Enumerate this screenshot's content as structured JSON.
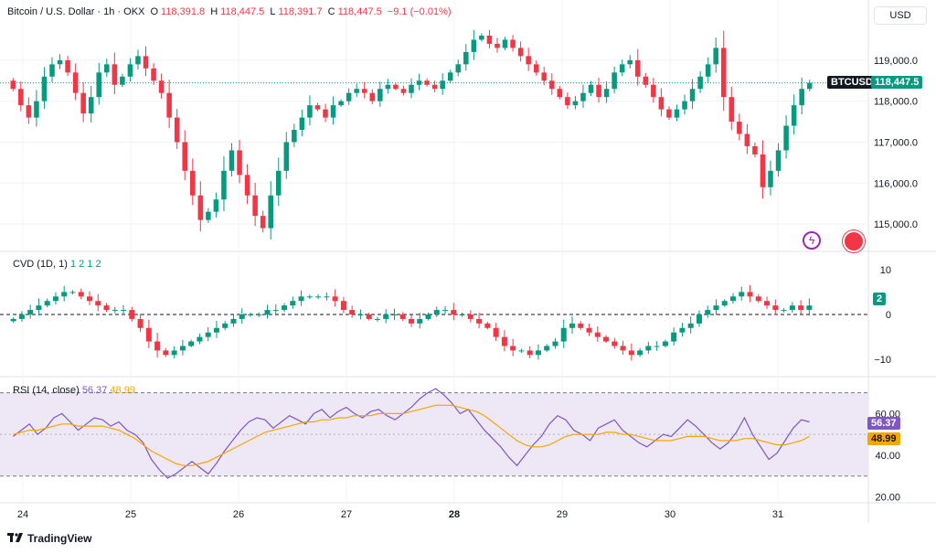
{
  "header": {
    "symbol": "Bitcoin / U.S. Dollar · 1h · OKX",
    "o_label": "O",
    "o_value": "118,391.8",
    "h_label": "H",
    "h_value": "118,447.5",
    "l_label": "L",
    "l_value": "118,391.7",
    "c_label": "C",
    "c_value": "118,447.5",
    "change": "−9.1 (−0.01%)"
  },
  "currency": "USD",
  "price_tag": {
    "ticker": "BTCUSD",
    "value": "118,447.5"
  },
  "cvd": {
    "label": "CVD (1D, 1)",
    "values": [
      "1",
      "2",
      "1",
      "2"
    ],
    "tag": "2"
  },
  "rsi": {
    "label": "RSI (14, close)",
    "value1": "56.37",
    "value2": "48.99"
  },
  "branding": "TradingView",
  "colors": {
    "up": "#089981",
    "down": "#f23645",
    "rsi": "#7e57c2",
    "ma": "#f7a600",
    "bg_band": "#ede7f6"
  },
  "chart_data": [
    {
      "type": "candlestick",
      "title": "Bitcoin / U.S. Dollar · 1h · OKX",
      "x_ticks": [
        "24",
        "25",
        "26",
        "27",
        "28",
        "29",
        "30",
        "31"
      ],
      "y_ticks": [
        "119,000.0",
        "118,000.0",
        "117,000.0",
        "116,000.0",
        "115,000.0"
      ],
      "ylim": [
        114400,
        119800
      ],
      "last_price": 118447.5,
      "closes": [
        118300,
        117900,
        117600,
        118000,
        118600,
        118900,
        119000,
        118700,
        118200,
        117700,
        118100,
        118700,
        118900,
        118400,
        118600,
        118900,
        119100,
        118800,
        118500,
        118200,
        117600,
        117000,
        116300,
        115700,
        115100,
        115300,
        115600,
        116300,
        116800,
        116200,
        115700,
        115200,
        114900,
        115700,
        116300,
        117000,
        117300,
        117600,
        117900,
        117800,
        117600,
        117900,
        118000,
        118200,
        118300,
        118200,
        118000,
        118300,
        118400,
        118300,
        118200,
        118400,
        118500,
        118400,
        118300,
        118500,
        118700,
        118900,
        119200,
        119500,
        119600,
        119400,
        119300,
        119500,
        119300,
        119100,
        118900,
        118700,
        118500,
        118300,
        118100,
        117900,
        118000,
        118200,
        118400,
        118100,
        118300,
        118700,
        118900,
        119000,
        118600,
        118400,
        118100,
        117800,
        117600,
        117800,
        118000,
        118300,
        118600,
        118900,
        119300,
        118100,
        117500,
        117200,
        116900,
        116700,
        115900,
        116300,
        116800,
        117400,
        117900,
        118300,
        118447.5
      ],
      "grid": true
    },
    {
      "type": "candlestick",
      "title": "CVD (1D, 1)",
      "y_ticks": [
        "10",
        "0",
        "−10"
      ],
      "ylim": [
        -13,
        13
      ],
      "closes": [
        -1,
        0,
        1,
        2,
        3,
        4,
        5,
        5,
        4,
        3,
        2,
        1,
        1,
        1,
        -1,
        -3,
        -6,
        -8,
        -9,
        -8,
        -7,
        -6,
        -5,
        -4,
        -3,
        -2,
        -1,
        0,
        0,
        0,
        1,
        1,
        2,
        3,
        4,
        4,
        4,
        4,
        3,
        1,
        0,
        0,
        -1,
        -1,
        0,
        0,
        -1,
        -2,
        -1,
        0,
        1,
        1,
        0,
        0,
        -1,
        -2,
        -3,
        -5,
        -7,
        -8,
        -8,
        -9,
        -8,
        -7,
        -6,
        -3,
        -2,
        -3,
        -4,
        -5,
        -6,
        -7,
        -8,
        -9,
        -8,
        -7,
        -7,
        -6,
        -4,
        -3,
        -2,
        0,
        1,
        2,
        3,
        4,
        5,
        4,
        3,
        2,
        1,
        1,
        2,
        1,
        2
      ]
    },
    {
      "type": "line",
      "title": "RSI (14, close)",
      "y_ticks": [
        "60.00",
        "40.00",
        "20.00"
      ],
      "ylim": [
        18,
        76
      ],
      "bands": [
        70,
        30
      ],
      "series": [
        {
          "name": "RSI (14, close)",
          "values": [
            49,
            52,
            55,
            50,
            53,
            58,
            60,
            56,
            52,
            55,
            58,
            57,
            54,
            56,
            52,
            50,
            46,
            38,
            33,
            29,
            31,
            34,
            37,
            34,
            31,
            36,
            42,
            47,
            52,
            56,
            58,
            57,
            53,
            56,
            59,
            57,
            55,
            60,
            62,
            58,
            61,
            63,
            60,
            58,
            61,
            62,
            59,
            57,
            60,
            63,
            67,
            70,
            72,
            69,
            65,
            60,
            62,
            57,
            52,
            48,
            44,
            39,
            35,
            40,
            45,
            49,
            55,
            59,
            57,
            52,
            50,
            47,
            53,
            55,
            57,
            52,
            49,
            46,
            44,
            47,
            50,
            49,
            53,
            57,
            54,
            50,
            46,
            43,
            46,
            51,
            58,
            50,
            44,
            38,
            41,
            47,
            53,
            57,
            56
          ]
        },
        {
          "name": "MA",
          "values": [
            50,
            51,
            52,
            52,
            53,
            54,
            55,
            55,
            54,
            54,
            54,
            54,
            53,
            52,
            50,
            48,
            45,
            42,
            40,
            38,
            36,
            35,
            35,
            36,
            37,
            39,
            41,
            43,
            45,
            47,
            49,
            51,
            52,
            53,
            54,
            55,
            56,
            56,
            57,
            57,
            58,
            58,
            59,
            59,
            59,
            60,
            60,
            60,
            60,
            61,
            62,
            63,
            64,
            64,
            64,
            63,
            62,
            61,
            59,
            56,
            53,
            50,
            47,
            45,
            44,
            44,
            45,
            47,
            49,
            50,
            50,
            50,
            50,
            51,
            51,
            50,
            50,
            49,
            48,
            47,
            47,
            47,
            48,
            49,
            49,
            49,
            48,
            47,
            47,
            47,
            48,
            48,
            47,
            46,
            45,
            45,
            46,
            47,
            49
          ]
        }
      ]
    }
  ]
}
